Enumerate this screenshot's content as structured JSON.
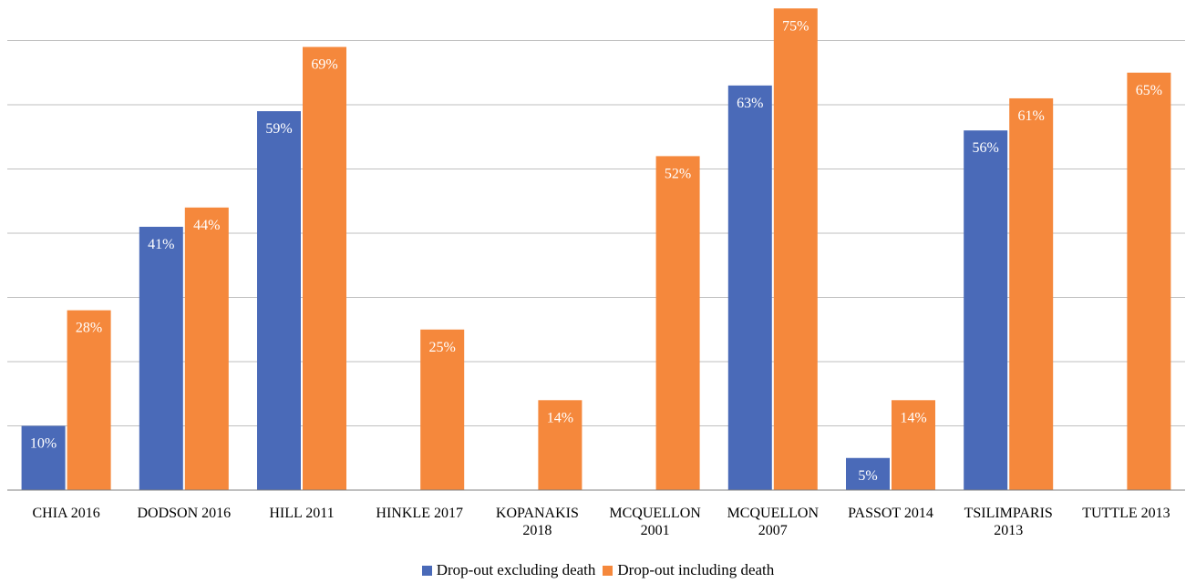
{
  "chart_data": {
    "type": "bar",
    "categories": [
      [
        "CHIA 2016"
      ],
      [
        "DODSON 2016"
      ],
      [
        "HILL 2011"
      ],
      [
        "HINKLE 2017"
      ],
      [
        "KOPANAKIS",
        "2018"
      ],
      [
        "MCQUELLON",
        "2001"
      ],
      [
        "MCQUELLON",
        "2007"
      ],
      [
        "PASSOT 2014"
      ],
      [
        "TSILIMPARIS",
        "2013"
      ],
      [
        "TUTTLE 2013"
      ]
    ],
    "series": [
      {
        "name": "Drop-out excluding death",
        "color": "#4A6AB8",
        "values": [
          10,
          41,
          59,
          null,
          null,
          null,
          63,
          5,
          56,
          null
        ],
        "labels": [
          "10%",
          "41%",
          "59%",
          null,
          null,
          null,
          "63%",
          "5%",
          "56%",
          null
        ]
      },
      {
        "name": "Drop-out including death",
        "color": "#F5883C",
        "values": [
          28,
          44,
          69,
          25,
          14,
          52,
          75,
          14,
          61,
          65
        ],
        "labels": [
          "28%",
          "44%",
          "69%",
          "25%",
          "14%",
          "52%",
          "75%",
          "14%",
          "61%",
          "65%"
        ]
      }
    ],
    "ylim": [
      0,
      75
    ],
    "gridline_step": 10,
    "grid": true,
    "legend_position": "bottom"
  }
}
